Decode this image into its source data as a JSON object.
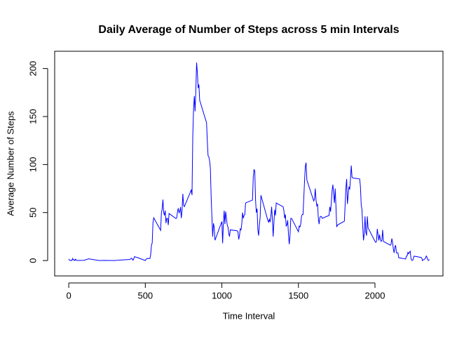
{
  "chart_data": {
    "type": "line",
    "title": "Daily Average of Number of Steps across 5 min Intervals",
    "x_label": "Time Interval",
    "y_label": "Average Number of Steps",
    "x": [
      0,
      5,
      10,
      15,
      20,
      25,
      30,
      35,
      40,
      45,
      50,
      55,
      100,
      130,
      200,
      230,
      300,
      330,
      400,
      410,
      420,
      430,
      440,
      450,
      500,
      505,
      515,
      530,
      535,
      540,
      545,
      550,
      555,
      600,
      605,
      610,
      615,
      620,
      625,
      630,
      635,
      640,
      645,
      650,
      655,
      700,
      705,
      710,
      715,
      720,
      725,
      730,
      735,
      740,
      745,
      750,
      755,
      800,
      805,
      810,
      815,
      820,
      825,
      830,
      835,
      840,
      845,
      850,
      855,
      900,
      905,
      910,
      915,
      920,
      925,
      930,
      935,
      940,
      945,
      950,
      955,
      1000,
      1005,
      1010,
      1015,
      1020,
      1025,
      1030,
      1035,
      1040,
      1045,
      1050,
      1055,
      1100,
      1105,
      1110,
      1115,
      1120,
      1125,
      1130,
      1135,
      1140,
      1145,
      1150,
      1155,
      1200,
      1205,
      1210,
      1215,
      1220,
      1225,
      1230,
      1235,
      1240,
      1245,
      1250,
      1255,
      1300,
      1305,
      1310,
      1315,
      1320,
      1325,
      1330,
      1335,
      1340,
      1345,
      1350,
      1355,
      1400,
      1405,
      1410,
      1415,
      1420,
      1425,
      1430,
      1435,
      1440,
      1445,
      1450,
      1455,
      1500,
      1505,
      1510,
      1515,
      1520,
      1525,
      1530,
      1535,
      1540,
      1545,
      1550,
      1555,
      1600,
      1605,
      1610,
      1615,
      1620,
      1625,
      1630,
      1635,
      1640,
      1645,
      1650,
      1655,
      1700,
      1705,
      1710,
      1715,
      1720,
      1725,
      1730,
      1735,
      1740,
      1745,
      1750,
      1755,
      1800,
      1805,
      1810,
      1815,
      1820,
      1825,
      1830,
      1835,
      1840,
      1845,
      1850,
      1855,
      1900,
      1905,
      1910,
      1915,
      1920,
      1925,
      1930,
      1935,
      1940,
      1945,
      1950,
      1955,
      2000,
      2005,
      2010,
      2015,
      2020,
      2025,
      2030,
      2035,
      2040,
      2045,
      2050,
      2055,
      2100,
      2105,
      2110,
      2115,
      2120,
      2125,
      2130,
      2135,
      2140,
      2145,
      2150,
      2155,
      2200,
      2205,
      2210,
      2215,
      2220,
      2225,
      2230,
      2235,
      2240,
      2245,
      2250,
      2255,
      2300,
      2305,
      2310,
      2315,
      2320,
      2325,
      2330,
      2335,
      2340,
      2345,
      2350,
      2355
    ],
    "series": [
      {
        "name": "steps",
        "color": "#0000ff",
        "values": [
          1.7,
          0.3,
          0.1,
          0.2,
          0.1,
          2.1,
          0.5,
          0.9,
          0,
          1.5,
          0.3,
          0.1,
          0.3,
          1.8,
          0,
          0.2,
          0,
          0.5,
          1.2,
          2.6,
          0.3,
          4.1,
          3.5,
          3.1,
          0,
          1.5,
          2.2,
          2.1,
          6.1,
          16,
          18.3,
          39.5,
          44.5,
          31.5,
          49.3,
          53.8,
          63.5,
          50,
          47,
          52,
          39,
          44,
          44,
          37,
          49,
          43.8,
          44.4,
          50.5,
          54.5,
          49.9,
          51,
          55.7,
          44.3,
          52.3,
          69.5,
          57.8,
          56.2,
          73.4,
          68.2,
          129.4,
          157.5,
          171.2,
          155.4,
          177.3,
          206.2,
          195.9,
          179.6,
          183.4,
          167,
          143.5,
          124,
          109.1,
          108.1,
          103.7,
          96,
          66.2,
          45.2,
          24.8,
          38.8,
          35,
          21.1,
          40.6,
          18,
          39,
          52,
          38,
          51,
          44,
          37,
          35,
          28,
          25,
          32,
          31,
          30,
          22,
          26,
          33,
          32,
          38,
          50,
          44,
          47,
          48,
          60,
          63,
          87,
          95,
          93,
          63,
          50,
          54,
          32,
          26,
          37,
          45,
          68,
          42,
          40,
          43,
          40,
          46,
          56,
          43,
          25,
          40,
          53,
          47,
          60,
          56,
          52,
          44,
          48,
          36,
          37,
          42,
          27,
          17,
          26,
          44,
          44,
          30,
          36,
          35,
          38,
          46,
          48,
          48,
          65,
          83,
          98,
          102,
          84,
          62,
          64,
          75,
          63,
          57,
          59,
          44,
          38,
          45,
          46,
          46,
          44,
          47,
          56,
          51,
          61,
          73,
          79,
          69,
          60,
          75,
          57,
          35,
          37,
          41,
          58,
          75,
          85,
          59,
          68,
          77,
          74,
          85,
          99,
          87,
          86,
          85,
          77,
          58,
          53,
          36,
          21,
          28,
          46,
          30,
          26,
          46,
          34,
          20,
          19,
          20,
          33,
          27,
          21,
          27,
          22,
          20,
          21,
          32,
          20,
          16,
          17,
          23,
          19,
          12,
          8,
          14,
          16,
          8,
          8,
          8,
          3,
          1.6,
          4.6,
          4.8,
          8.5,
          7.1,
          8.7,
          9.8,
          2.2,
          0.3,
          0.1,
          1.6,
          4.6,
          3.3,
          2.8,
          0,
          0.8,
          1,
          1.6,
          2.6,
          4.7,
          3.3,
          0.6,
          0.2,
          1.1
        ]
      }
    ],
    "xlim": [
      -92,
      2444
    ],
    "ylim": [
      -16,
      218
    ],
    "xticks": [
      0,
      500,
      1000,
      1500,
      2000
    ],
    "yticks": [
      0,
      50,
      100,
      150,
      200
    ]
  }
}
